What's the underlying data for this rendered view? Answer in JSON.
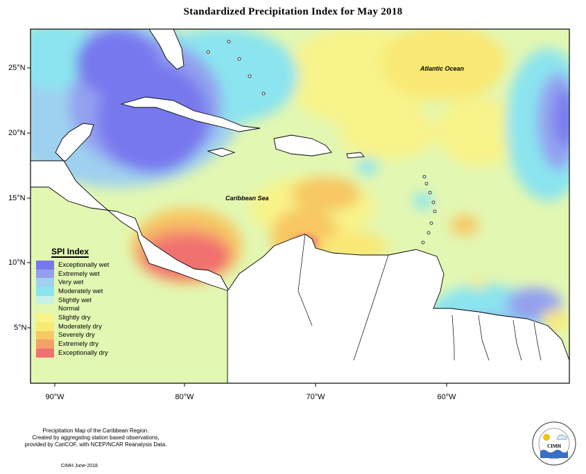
{
  "title": "Standardized Precipitation Index for May 2018",
  "x_ticks": [
    "90°W",
    "80°W",
    "70°W",
    "60°W"
  ],
  "y_ticks": [
    "25°N",
    "20°N",
    "15°N",
    "10°N",
    "5°N"
  ],
  "labels": {
    "atlantic": "Atlantic Ocean",
    "caribbean": "Caribbean Sea"
  },
  "legend": {
    "title": "SPI Index",
    "items": [
      {
        "label": "Exceptionally wet",
        "color": "#7878ee"
      },
      {
        "label": "Extremely wet",
        "color": "#93a0ef"
      },
      {
        "label": "Very wet",
        "color": "#9fd0f0"
      },
      {
        "label": "Moderately wet",
        "color": "#8be4ef"
      },
      {
        "label": "Slightly wet",
        "color": "#c6f1e4"
      },
      {
        "label": "Normal",
        "color": "#e2f7b2"
      },
      {
        "label": "Slightly dry",
        "color": "#f8f38a"
      },
      {
        "label": "Moderately dry",
        "color": "#f9e874"
      },
      {
        "label": "Severely dry",
        "color": "#f7c864"
      },
      {
        "label": "Extremely dry",
        "color": "#f5a06a"
      },
      {
        "label": "Exceptionally dry",
        "color": "#f17070"
      }
    ]
  },
  "credits": {
    "line1": "Precipitation Map of the Caribbean Region.",
    "line2": "Created by aggregating station based observations,",
    "line3": "provided by CariCOF, with NCEP/NCAR Reanalysis Data.",
    "date": "CIMH June-2018"
  },
  "logo": {
    "text": "CIMH"
  }
}
